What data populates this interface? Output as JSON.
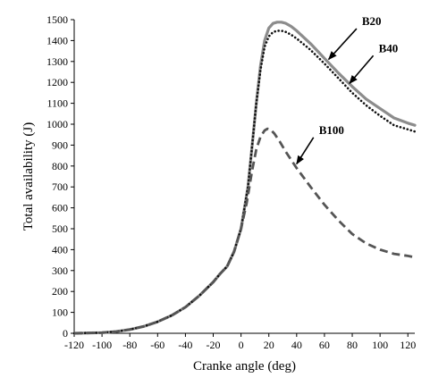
{
  "chart_data": {
    "type": "line",
    "title": "",
    "xlabel": "Cranke angle (deg)",
    "ylabel": "Total availability (J)",
    "xlim": [
      -120,
      125
    ],
    "ylim": [
      0,
      1500
    ],
    "xticks": [
      -120,
      -100,
      -80,
      -60,
      -40,
      -20,
      0,
      20,
      40,
      60,
      80,
      100,
      120
    ],
    "yticks": [
      0,
      100,
      200,
      300,
      400,
      500,
      600,
      700,
      800,
      900,
      1000,
      1100,
      1200,
      1300,
      1400,
      1500
    ],
    "grid": false,
    "series": [
      {
        "name": "B20",
        "color": "#8c8c8c",
        "line_style": "solid",
        "x": [
          -120,
          -100,
          -90,
          -80,
          -70,
          -60,
          -50,
          -40,
          -30,
          -20,
          -15,
          -10,
          -5,
          0,
          5,
          8,
          11,
          14,
          17,
          20,
          23,
          26,
          29,
          32,
          36,
          40,
          50,
          60,
          70,
          80,
          90,
          100,
          110,
          120,
          125
        ],
        "y": [
          0,
          3,
          8,
          18,
          33,
          55,
          85,
          125,
          180,
          245,
          285,
          320,
          390,
          500,
          700,
          900,
          1100,
          1280,
          1400,
          1460,
          1482,
          1488,
          1488,
          1483,
          1468,
          1447,
          1385,
          1315,
          1245,
          1180,
          1120,
          1075,
          1030,
          1005,
          995
        ]
      },
      {
        "name": "B40",
        "color": "#111111",
        "line_style": "dotted",
        "x": [
          -120,
          -100,
          -90,
          -80,
          -70,
          -60,
          -50,
          -40,
          -30,
          -20,
          -15,
          -10,
          -5,
          0,
          5,
          8,
          11,
          14,
          17,
          20,
          23,
          26,
          29,
          32,
          36,
          40,
          50,
          60,
          70,
          80,
          90,
          100,
          110,
          120,
          125
        ],
        "y": [
          0,
          3,
          8,
          18,
          33,
          55,
          85,
          125,
          180,
          245,
          285,
          320,
          390,
          500,
          700,
          900,
          1100,
          1260,
          1370,
          1420,
          1440,
          1447,
          1447,
          1442,
          1428,
          1410,
          1355,
          1290,
          1220,
          1150,
          1090,
          1040,
          995,
          975,
          965
        ]
      },
      {
        "name": "B100",
        "color": "#555555",
        "line_style": "dashed",
        "x": [
          -120,
          -100,
          -90,
          -80,
          -70,
          -60,
          -50,
          -40,
          -30,
          -20,
          -15,
          -10,
          -5,
          0,
          4,
          8,
          11,
          14,
          17,
          19,
          21,
          24,
          28,
          32,
          36,
          40,
          50,
          60,
          70,
          80,
          90,
          100,
          110,
          120,
          124
        ],
        "y": [
          0,
          3,
          8,
          18,
          33,
          55,
          85,
          125,
          180,
          245,
          285,
          320,
          390,
          500,
          620,
          780,
          880,
          940,
          970,
          978,
          975,
          955,
          915,
          870,
          830,
          790,
          700,
          615,
          540,
          475,
          430,
          400,
          380,
          370,
          365
        ]
      }
    ],
    "annotations": [
      {
        "text": "B20",
        "target": [
          63,
          1310
        ],
        "label_at": [
          87,
          1474
        ]
      },
      {
        "text": "B40",
        "target": [
          78,
          1195
        ],
        "label_at": [
          99,
          1345
        ]
      },
      {
        "text": "B100",
        "target": [
          40,
          810
        ],
        "label_at": [
          56,
          954
        ]
      }
    ]
  }
}
